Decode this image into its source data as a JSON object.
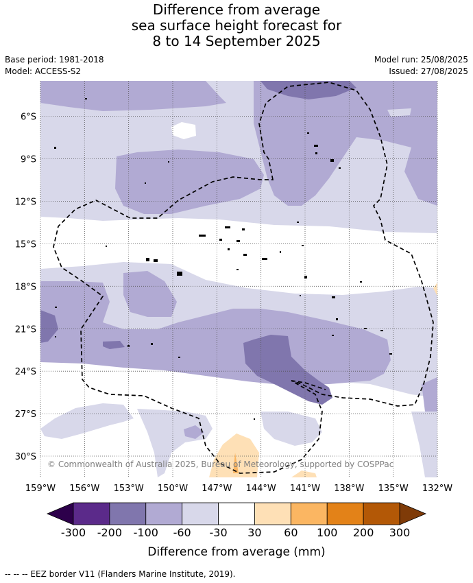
{
  "title": {
    "line1": "Difference from average",
    "line2": "sea surface height forecast for",
    "line3": "8 to 14 September 2025"
  },
  "meta": {
    "base_period": "Base period: 1981-2018",
    "model": "Model: ACCESS-S2",
    "model_run": "Model run: 25/08/2025",
    "issued": "Issued: 27/08/2025"
  },
  "map": {
    "lon_range": [
      -159,
      -132
    ],
    "lat_range": [
      -31.5,
      -3.5
    ],
    "lat_labels": [
      "6°S",
      "9°S",
      "12°S",
      "15°S",
      "18°S",
      "21°S",
      "24°S",
      "27°S",
      "30°S"
    ],
    "lat_values": [
      -6,
      -9,
      -12,
      -15,
      -18,
      -21,
      -24,
      -27,
      -30
    ],
    "lon_labels": [
      "159°W",
      "156°W",
      "153°W",
      "150°W",
      "147°W",
      "144°W",
      "141°W",
      "138°W",
      "135°W",
      "132°W"
    ],
    "lon_values": [
      -159,
      -156,
      -153,
      -150,
      -147,
      -144,
      -141,
      -138,
      -135,
      -132
    ],
    "copyright": "© Commonwealth of Australia 2025, Bureau of Meteorology, supported by COSPPac",
    "gridlines": "dotted"
  },
  "colorbar": {
    "ticks": [
      "-300",
      "-200",
      "-100",
      "-60",
      "-30",
      "30",
      "60",
      "100",
      "200",
      "300"
    ],
    "colors": [
      "#5b2a8a",
      "#8076ad",
      "#b1aad3",
      "#d8d8ea",
      "#ffffff",
      "#fee0b6",
      "#fbb662",
      "#e38218",
      "#b35806"
    ],
    "under_color": "#2d004b",
    "over_color": "#7f3b08",
    "label": "Difference from average (mm)"
  },
  "footnote": "-- -- -- EEZ border V11 (Flanders Marine Institute, 2019)."
}
